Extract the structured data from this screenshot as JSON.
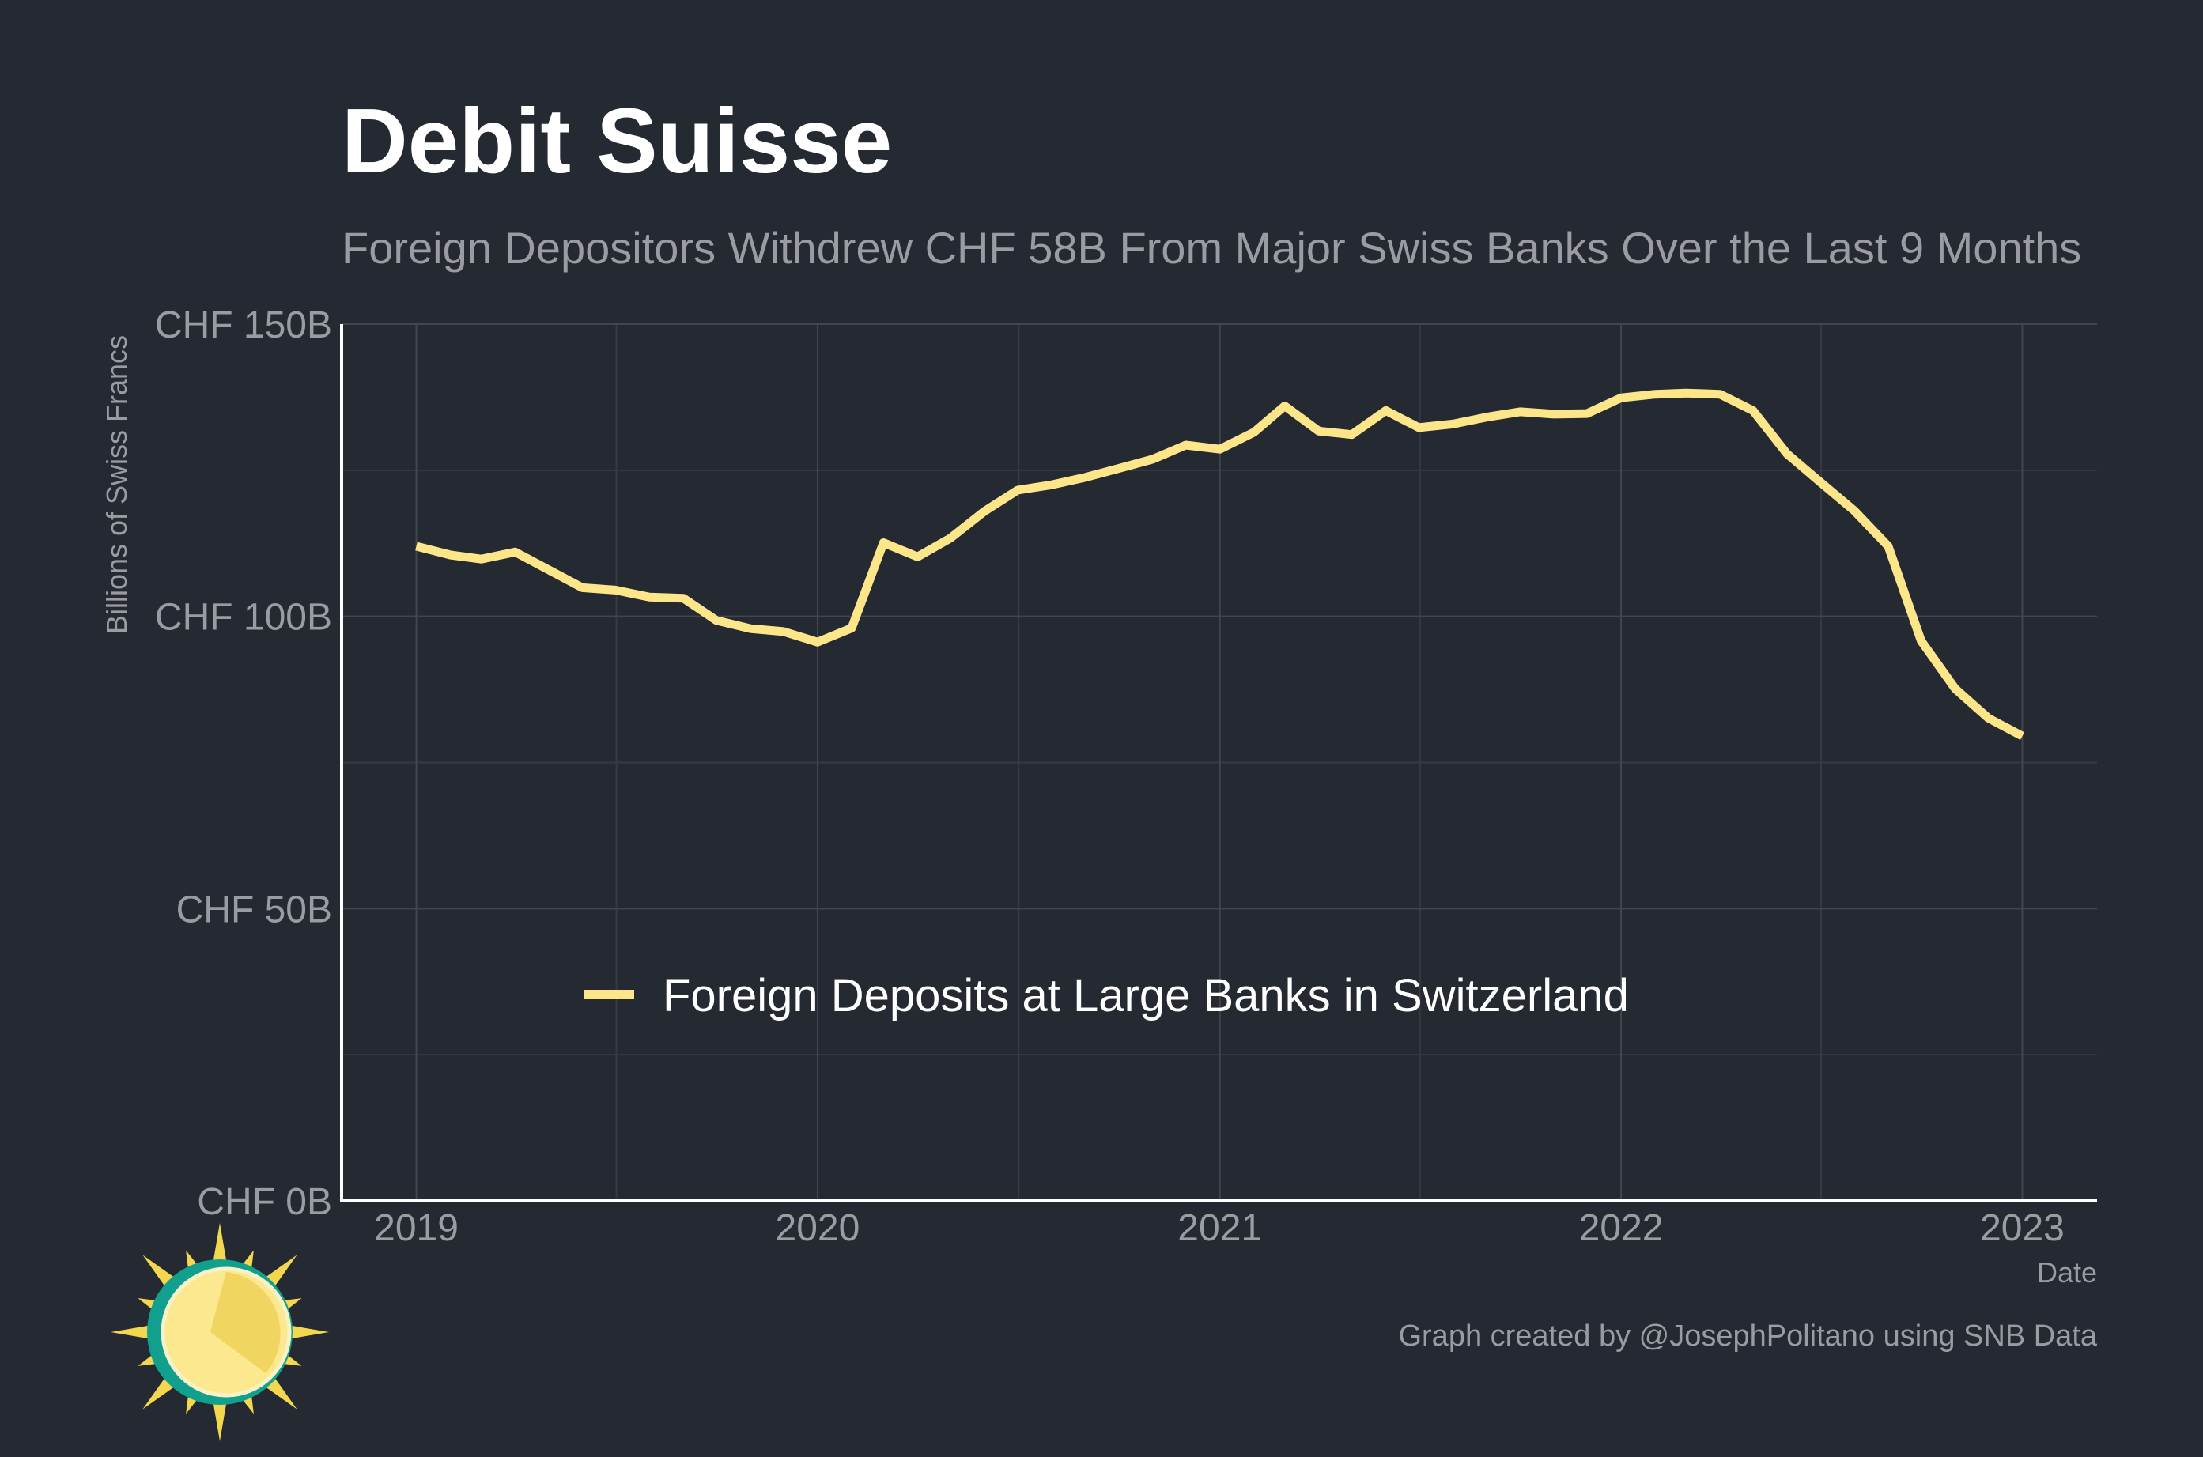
{
  "chart_data": {
    "type": "line",
    "title": "Debit Suisse",
    "subtitle": "Foreign Depositors Withdrew CHF 58B From Major Swiss Banks Over the Last 9 Months",
    "xlabel": "Date",
    "ylabel": "Billions of Swiss Francs",
    "caption": "Graph created by @JosephPolitano using SNB Data",
    "xlim": [
      "2018-10-25",
      "2023-03-10"
    ],
    "ylim": [
      0,
      150
    ],
    "x_ticks": [
      {
        "date": "2019-01-01",
        "label": "2019"
      },
      {
        "date": "2020-01-01",
        "label": "2020"
      },
      {
        "date": "2021-01-01",
        "label": "2021"
      },
      {
        "date": "2022-01-01",
        "label": "2022"
      },
      {
        "date": "2023-01-01",
        "label": "2023"
      }
    ],
    "y_ticks": [
      {
        "value": 0,
        "label": "CHF 0B"
      },
      {
        "value": 50,
        "label": "CHF 50B"
      },
      {
        "value": 100,
        "label": "CHF 100B"
      },
      {
        "value": 150,
        "label": "CHF 150B"
      }
    ],
    "grid": true,
    "legend_position": "bottom-left",
    "series": [
      {
        "name": "Foreign Deposits at Large Banks in Switzerland",
        "color": "#fde68a",
        "x": [
          "2019-01-01",
          "2019-02-01",
          "2019-03-01",
          "2019-04-01",
          "2019-05-01",
          "2019-06-01",
          "2019-07-01",
          "2019-08-01",
          "2019-09-01",
          "2019-10-01",
          "2019-11-01",
          "2019-12-01",
          "2020-01-01",
          "2020-02-01",
          "2020-03-01",
          "2020-04-01",
          "2020-05-01",
          "2020-06-01",
          "2020-07-01",
          "2020-08-01",
          "2020-09-01",
          "2020-10-01",
          "2020-11-01",
          "2020-12-01",
          "2021-01-01",
          "2021-02-01",
          "2021-03-01",
          "2021-04-01",
          "2021-05-01",
          "2021-06-01",
          "2021-07-01",
          "2021-08-01",
          "2021-09-01",
          "2021-10-01",
          "2021-11-01",
          "2021-12-01",
          "2022-01-01",
          "2022-02-01",
          "2022-03-01",
          "2022-04-01",
          "2022-05-01",
          "2022-06-01",
          "2022-07-01",
          "2022-08-01",
          "2022-09-01",
          "2022-10-01",
          "2022-11-01",
          "2022-12-01",
          "2023-01-01"
        ],
        "values": [
          112,
          110.5,
          109.8,
          111,
          108,
          104.9,
          104.5,
          103.3,
          103.1,
          99.3,
          97.9,
          97.4,
          95.6,
          98,
          112.6,
          110.2,
          113.4,
          118,
          121.6,
          122.5,
          123.8,
          125.3,
          126.9,
          129.3,
          128.6,
          131.5,
          136,
          131.7,
          131.1,
          135.2,
          132.3,
          132.9,
          134.1,
          135,
          134.6,
          134.7,
          137.4,
          138,
          138.2,
          138,
          135.2,
          127.8,
          123,
          118.1,
          112,
          95.8,
          87.6,
          82.6,
          79.5
        ]
      }
    ]
  }
}
